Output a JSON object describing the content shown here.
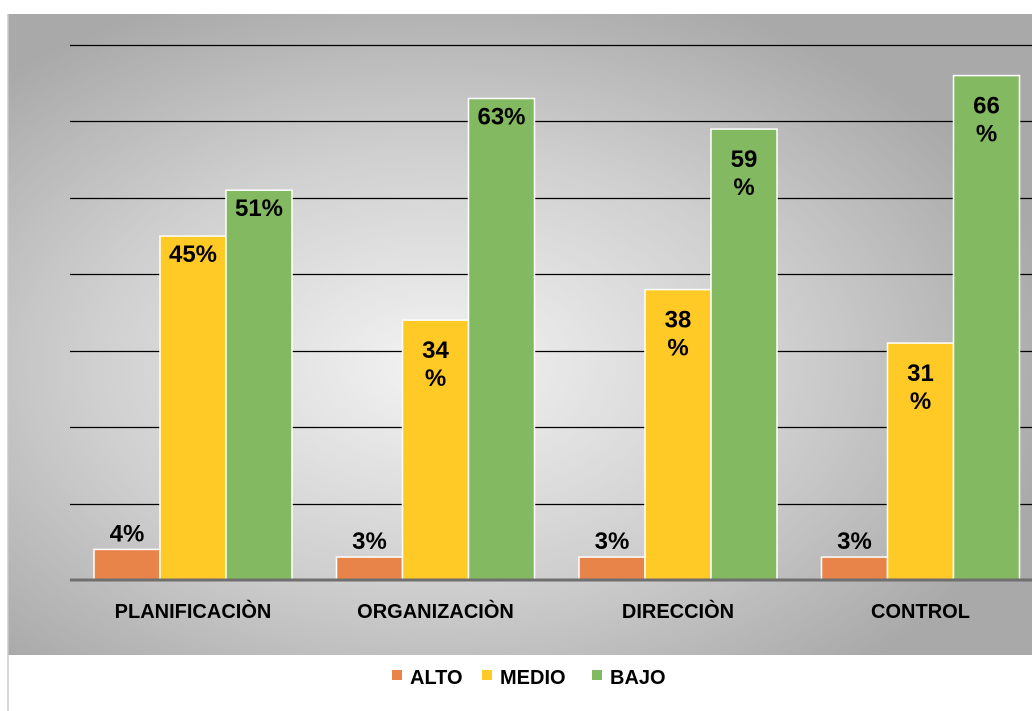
{
  "chart_data": {
    "type": "bar",
    "title": "",
    "xlabel": "",
    "ylabel": "",
    "categories": [
      "PLANIFICACIÒN",
      "ORGANIZACIÒN",
      "DIRECCIÒN",
      "CONTROL"
    ],
    "series": [
      {
        "name": "ALTO",
        "values": [
          4,
          3,
          3,
          3
        ],
        "labels": [
          "4%",
          "3%",
          "3%",
          "3%"
        ],
        "color": "#E8834A"
      },
      {
        "name": "MEDIO",
        "values": [
          45,
          34,
          38,
          31
        ],
        "labels": [
          "45%",
          "34 %",
          "38 %",
          "31 %"
        ],
        "color": "#FFC926"
      },
      {
        "name": "BAJO",
        "values": [
          51,
          63,
          59,
          66
        ],
        "labels": [
          "51%",
          "63%",
          "59 %",
          "66 %"
        ],
        "color": "#83B960"
      }
    ],
    "ylim": [
      0,
      70
    ],
    "grid": true,
    "legend": "bottom"
  }
}
